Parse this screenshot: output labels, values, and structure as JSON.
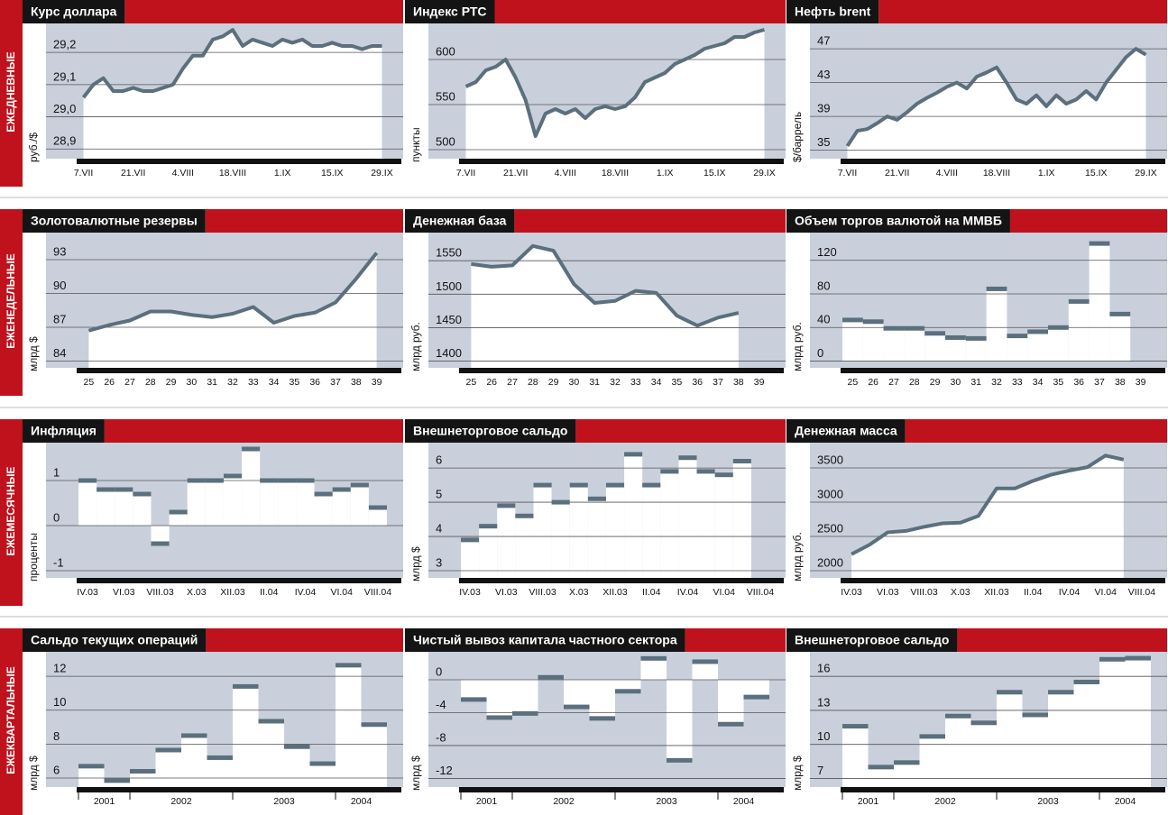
{
  "row_labels": [
    "ЕЖЕДНЕВНЫЕ",
    "ЕЖЕНЕДЕЛЬНЫЕ",
    "ЕЖЕМЕСЯЧНЫЕ",
    "ЕЖЕКВАРТАЛЬНЫЕ"
  ],
  "chart_data": [
    {
      "type": "line",
      "title": "Курс доллара",
      "y_label": "руб./$",
      "color": "#5b6f7d",
      "grid": true,
      "categories": [
        "7.VII",
        null,
        null,
        null,
        null,
        "21.VII",
        null,
        null,
        null,
        null,
        "4.VIII",
        null,
        null,
        null,
        null,
        "18.VIII",
        null,
        null,
        null,
        null,
        "1.IX",
        null,
        null,
        null,
        null,
        "15.IX",
        null,
        null,
        null,
        null,
        "29.IX"
      ],
      "values": [
        29.06,
        29.1,
        29.12,
        29.08,
        29.08,
        29.09,
        29.08,
        29.08,
        29.09,
        29.1,
        29.15,
        29.19,
        29.19,
        29.24,
        29.25,
        29.27,
        29.22,
        29.24,
        29.23,
        29.22,
        29.24,
        29.23,
        29.24,
        29.22,
        29.22,
        29.23,
        29.22,
        29.22,
        29.21,
        29.22,
        29.22
      ],
      "ylim": [
        28.87,
        29.29
      ],
      "yticks": [
        {
          "value": 28.9,
          "label": "28,9"
        },
        {
          "value": 29.0,
          "label": "29,0"
        },
        {
          "value": 29.1,
          "label": "29,1"
        },
        {
          "value": 29.2,
          "label": "29,2"
        }
      ]
    },
    {
      "type": "line",
      "title": "Индекс РТС",
      "y_label": "пункты",
      "color": "#5b6f7d",
      "grid": true,
      "categories": [
        "7.VII",
        null,
        null,
        null,
        null,
        "21.VII",
        null,
        null,
        null,
        null,
        "4.VIII",
        null,
        null,
        null,
        null,
        "18.VIII",
        null,
        null,
        null,
        null,
        "1.IX",
        null,
        null,
        null,
        null,
        "15.IX",
        null,
        null,
        null,
        null,
        "29.IX"
      ],
      "values": [
        570,
        575,
        588,
        592,
        600,
        580,
        555,
        515,
        540,
        545,
        540,
        545,
        535,
        545,
        548,
        545,
        548,
        558,
        575,
        580,
        585,
        595,
        600,
        605,
        612,
        615,
        618,
        625,
        625,
        630,
        633
      ],
      "ylim": [
        490,
        640
      ],
      "yticks": [
        500,
        550,
        600
      ]
    },
    {
      "type": "line",
      "title": "Нефть brent",
      "y_label": "$/баррель",
      "color": "#5b6f7d",
      "grid": true,
      "categories": [
        "7.VII",
        null,
        null,
        null,
        null,
        "21.VII",
        null,
        null,
        null,
        null,
        "4.VIII",
        null,
        null,
        null,
        null,
        "18.VIII",
        null,
        null,
        null,
        null,
        "1.IX",
        null,
        null,
        null,
        null,
        "15.IX",
        null,
        null,
        null,
        null,
        "29.IX"
      ],
      "values": [
        35.5,
        37.3,
        37.5,
        38.2,
        39.0,
        38.6,
        39.5,
        40.5,
        41.2,
        41.8,
        42.5,
        43.0,
        42.3,
        43.7,
        44.2,
        44.8,
        43.0,
        41.0,
        40.5,
        41.5,
        40.2,
        41.5,
        40.5,
        41.0,
        42.0,
        41.0,
        43.0,
        44.5,
        46.0,
        47.0,
        46.3
      ],
      "ylim": [
        34,
        50
      ],
      "yticks": [
        35,
        39,
        43,
        47
      ]
    },
    {
      "type": "line",
      "title": "Золотовалютные резервы",
      "y_label": "млрд $",
      "color": "#5b6f7d",
      "grid": true,
      "categories": [
        "25",
        "26",
        "27",
        "28",
        "29",
        "30",
        "31",
        "32",
        "33",
        "34",
        "35",
        "36",
        "37",
        "38",
        "39"
      ],
      "values": [
        86.7,
        87.2,
        87.6,
        88.4,
        88.4,
        88.1,
        87.9,
        88.2,
        88.8,
        87.4,
        88.0,
        88.3,
        89.2,
        91.3,
        93.6
      ],
      "ylim": [
        83.4,
        95.4
      ],
      "yticks": [
        84,
        87,
        90,
        93
      ]
    },
    {
      "type": "line",
      "title": "Денежная база",
      "y_label": "млрд руб.",
      "color": "#5b6f7d",
      "grid": true,
      "categories": [
        "25",
        "26",
        "27",
        "28",
        "29",
        "30",
        "31",
        "32",
        "33",
        "34",
        "35",
        "36",
        "37",
        "38",
        "39"
      ],
      "values": [
        1545,
        1541,
        1543,
        1572,
        1565,
        1515,
        1487,
        1490,
        1505,
        1502,
        1468,
        1453,
        1465,
        1472,
        null
      ],
      "ylim": [
        1390,
        1592
      ],
      "yticks": [
        1400,
        1450,
        1500,
        1550
      ]
    },
    {
      "type": "bar",
      "title": "Объем торгов валютой на ММВБ",
      "y_label": "млрд руб.",
      "color": "#5b6f7d",
      "grid": true,
      "categories": [
        "25",
        "26",
        "27",
        "28",
        "29",
        "30",
        "31",
        "32",
        "33",
        "34",
        "35",
        "36",
        "37",
        "38",
        "39"
      ],
      "values": [
        49,
        47,
        39,
        39,
        33,
        28,
        27,
        86,
        30,
        35,
        40,
        71,
        140,
        56,
        null
      ],
      "ylim": [
        -8,
        153
      ],
      "yticks": [
        0,
        40,
        80,
        120
      ]
    },
    {
      "type": "bar",
      "title": "Инфляция",
      "y_label": "проценты",
      "color": "#5b6f7d",
      "grid": true,
      "categories": [
        "IV.03",
        null,
        "VI.03",
        null,
        "VIII.03",
        null,
        "X.03",
        null,
        "XII.03",
        null,
        "II.04",
        null,
        "IV.04",
        null,
        "VI.04",
        null,
        "VIII.04"
      ],
      "values": [
        1.0,
        0.8,
        0.8,
        0.7,
        -0.4,
        0.3,
        1.0,
        1.0,
        1.1,
        1.7,
        1.0,
        1.0,
        1.0,
        0.7,
        0.8,
        0.9,
        0.4
      ],
      "ylim": [
        -1.16,
        1.84
      ],
      "yticks": [
        -1,
        0,
        1
      ]
    },
    {
      "type": "bar",
      "title": "Внешнеторговое сальдо",
      "y_label": "млрд $",
      "color": "#5b6f7d",
      "grid": true,
      "categories": [
        "IV.03",
        null,
        "VI.03",
        null,
        "VIII.03",
        null,
        "X.03",
        null,
        "XII.03",
        null,
        "II.04",
        null,
        "IV.04",
        null,
        "VI.04",
        null,
        "VIII.04"
      ],
      "values": [
        3.9,
        4.3,
        4.9,
        4.6,
        5.5,
        5.0,
        5.5,
        5.1,
        5.5,
        6.4,
        5.5,
        5.9,
        6.3,
        5.9,
        5.8,
        6.2,
        null
      ],
      "ylim": [
        2.79,
        6.74
      ],
      "yticks": [
        3,
        4,
        5,
        6
      ]
    },
    {
      "type": "line",
      "title": "Денежная масса",
      "y_label": "млрд руб.",
      "color": "#5b6f7d",
      "grid": true,
      "categories": [
        "IV.03",
        null,
        "VI.03",
        null,
        "VIII.03",
        null,
        "X.03",
        null,
        "XII.03",
        null,
        "II.04",
        null,
        "IV.04",
        null,
        "VI.04",
        null,
        "VIII.04"
      ],
      "values": [
        2240,
        2380,
        2560,
        2580,
        2640,
        2690,
        2700,
        2800,
        3200,
        3200,
        3310,
        3400,
        3460,
        3510,
        3680,
        3620,
        null
      ],
      "ylim": [
        1895,
        3868
      ],
      "yticks": [
        2000,
        2500,
        3000,
        3500
      ]
    },
    {
      "type": "bar",
      "title": "Сальдо текущих операций",
      "y_label": "млрд $",
      "color": "#5b6f7d",
      "grid": true,
      "categories": [
        "2001",
        "2001",
        "2002",
        "2002",
        "2002",
        "2002",
        "2003",
        "2003",
        "2003",
        "2003",
        "2004",
        "2004"
      ],
      "values": [
        6.7,
        5.85,
        6.4,
        7.65,
        8.5,
        7.2,
        11.4,
        9.35,
        7.85,
        6.85,
        12.65,
        9.15
      ],
      "ylim": [
        5.47,
        13.44
      ],
      "yticks": [
        6,
        8,
        10,
        12
      ]
    },
    {
      "type": "bar",
      "title": "Чистый вывоз капитала частного сектора",
      "y_label": "млрд $",
      "color": "#5b6f7d",
      "grid": true,
      "categories": [
        "2001",
        "2001",
        "2002",
        "2002",
        "2002",
        "2002",
        "2003",
        "2003",
        "2003",
        "2003",
        "2004",
        "2004"
      ],
      "values": [
        -2.4,
        -4.6,
        -4.1,
        0.3,
        -3.3,
        -4.7,
        -1.4,
        2.6,
        -9.8,
        2.2,
        -5.4,
        -2.1
      ],
      "ylim": [
        -13.05,
        3.4
      ],
      "yticks": [
        0,
        -4,
        -8,
        -12
      ]
    },
    {
      "type": "bar",
      "title": "Внешнеторговое сальдо",
      "y_label": "млрд $",
      "color": "#5b6f7d",
      "grid": true,
      "categories": [
        "2001",
        "2001",
        "2002",
        "2002",
        "2002",
        "2002",
        "2003",
        "2003",
        "2003",
        "2003",
        "2004",
        "2004"
      ],
      "values": [
        11.6,
        8.0,
        8.4,
        10.7,
        12.5,
        11.9,
        14.6,
        12.6,
        14.6,
        15.5,
        17.5,
        17.6
      ],
      "ylim": [
        6.24,
        18.16
      ],
      "yticks": [
        7,
        10,
        13,
        16
      ]
    }
  ]
}
